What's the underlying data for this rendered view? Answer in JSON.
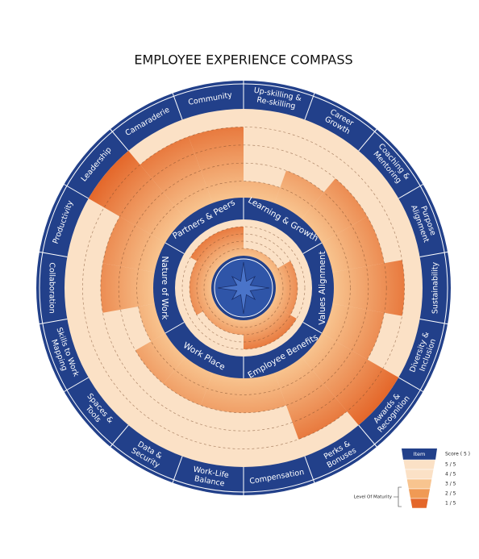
{
  "chart_data": {
    "type": "radial",
    "title": "EMPLOYEE EXPERIENCE COMPASS",
    "outer": {
      "labels": [
        [
          "Up-skilling &",
          "Re-skilling"
        ],
        [
          "Career",
          "Growth"
        ],
        [
          "Coaching &",
          "Mentoring"
        ],
        [
          "Purpose",
          "Alignment"
        ],
        [
          "Sustainability"
        ],
        [
          "Diversity &",
          "Inclusion"
        ],
        [
          "Awards &",
          "Recognition"
        ],
        [
          "Perks &",
          "Bonuses"
        ],
        [
          "Compensation"
        ],
        [
          "Work-Life",
          "Balance"
        ],
        [
          "Data &",
          "Security"
        ],
        [
          "Spaces &",
          "Tools"
        ],
        [
          "Skills to Work",
          "Mapping"
        ],
        [
          "Collaboration"
        ],
        [
          "Productivity"
        ],
        [
          "Leadership"
        ],
        [
          "Camaraderie"
        ],
        [
          "Community"
        ]
      ],
      "values": [
        1,
        2,
        3,
        3,
        4,
        3,
        5,
        4,
        2,
        2,
        2,
        2,
        1,
        3,
        3,
        5,
        4,
        4
      ]
    },
    "inner": {
      "categories": [
        "Learning & Growth",
        "Values Alignment",
        "Employee Benefits",
        "Work Place",
        "Nature of Work",
        "Partners & Peers"
      ],
      "values": [
        1,
        3,
        4,
        2,
        3,
        4
      ]
    },
    "rlim": [
      0,
      5
    ],
    "rticks": [
      1,
      2,
      3,
      4
    ],
    "ring_color": "#22408a",
    "fill_color": "#fbe1c6",
    "bar_colors": [
      "#f8c48f",
      "#e4672a"
    ],
    "legend": {
      "header": "Item",
      "score": "Score ( 5 )",
      "levels": [
        "5 / 5",
        "4 / 5",
        "3 / 5",
        "2 / 5",
        "1 / 5"
      ],
      "note": "Level Of Maturity"
    }
  }
}
